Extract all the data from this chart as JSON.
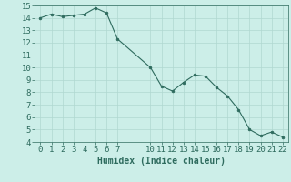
{
  "x": [
    0,
    1,
    2,
    3,
    4,
    5,
    6,
    7,
    10,
    11,
    12,
    13,
    14,
    15,
    16,
    17,
    18,
    19,
    20,
    21,
    22
  ],
  "y": [
    14.0,
    14.3,
    14.1,
    14.2,
    14.3,
    14.8,
    14.4,
    12.3,
    10.0,
    8.5,
    8.1,
    8.8,
    9.4,
    9.3,
    8.4,
    7.7,
    6.6,
    5.0,
    4.5,
    4.8,
    4.4
  ],
  "line_color": "#2e6b5e",
  "marker": "o",
  "marker_size": 2,
  "bg_color": "#cceee8",
  "grid_color": "#b0d8d0",
  "xlabel": "Humidex (Indice chaleur)",
  "xlim": [
    -0.5,
    22.5
  ],
  "ylim": [
    4,
    15
  ],
  "yticks": [
    4,
    5,
    6,
    7,
    8,
    9,
    10,
    11,
    12,
    13,
    14,
    15
  ],
  "xticks": [
    0,
    1,
    2,
    3,
    4,
    5,
    6,
    7,
    10,
    11,
    12,
    13,
    14,
    15,
    16,
    17,
    18,
    19,
    20,
    21,
    22
  ],
  "label_fontsize": 7,
  "tick_fontsize": 6.5
}
